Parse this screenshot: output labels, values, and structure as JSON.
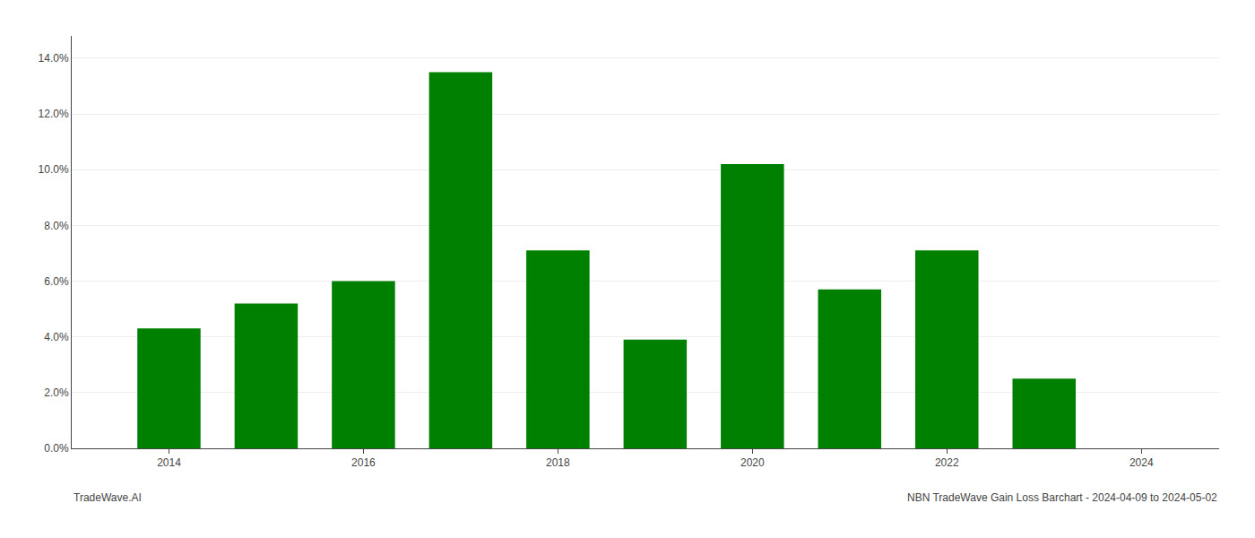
{
  "chart_data": {
    "type": "bar",
    "x": [
      2014,
      2015,
      2016,
      2017,
      2018,
      2019,
      2020,
      2021,
      2022,
      2023
    ],
    "values": [
      0.043,
      0.052,
      0.06,
      0.135,
      0.071,
      0.039,
      0.102,
      0.057,
      0.071,
      0.025
    ],
    "color": "#008000",
    "xlim": [
      2013.0,
      2024.8
    ],
    "xticks": [
      2014,
      2016,
      2018,
      2020,
      2022,
      2024
    ],
    "ylim": [
      0.0,
      0.148
    ],
    "yticks": [
      {
        "value": 0.0,
        "label": "0.0%"
      },
      {
        "value": 0.02,
        "label": "2.0%"
      },
      {
        "value": 0.04,
        "label": "4.0%"
      },
      {
        "value": 0.06,
        "label": "6.0%"
      },
      {
        "value": 0.08,
        "label": "8.0%"
      },
      {
        "value": 0.1,
        "label": "10.0%"
      },
      {
        "value": 0.12,
        "label": "12.0%"
      },
      {
        "value": 0.14,
        "label": "14.0%"
      }
    ],
    "grid": true,
    "annotations": [
      "TradeWave.AI",
      "NBN TradeWave Gain Loss Barchart - 2024-04-09 to 2024-05-02"
    ]
  }
}
